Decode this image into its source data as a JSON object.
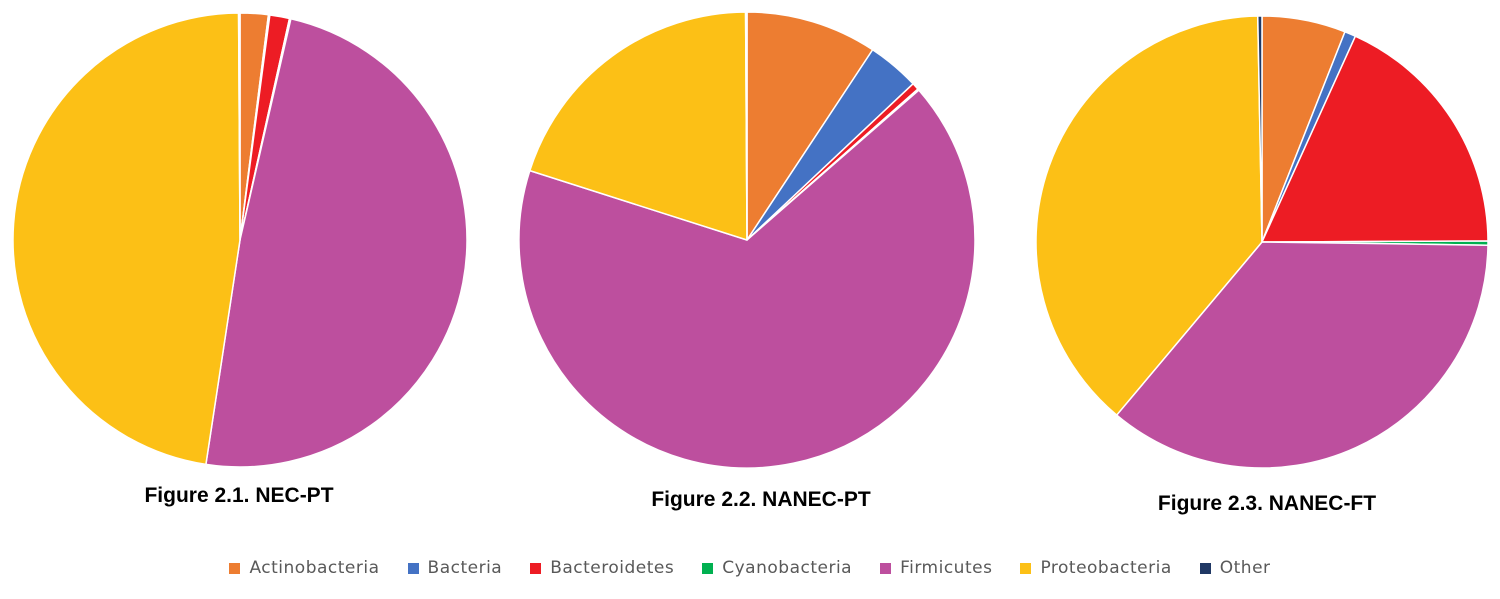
{
  "chart_data": [
    {
      "type": "pie",
      "title": "Figure 2.1. NEC-PT",
      "categories": [
        "Actinobacteria",
        "Bacteria",
        "Bacteroidetes",
        "Cyanobacteria",
        "Firmicutes",
        "Proteobacteria",
        "Other"
      ],
      "values": [
        2.0,
        0.1,
        1.4,
        0.1,
        48.8,
        47.5,
        0.1
      ]
    },
    {
      "type": "pie",
      "title": "Figure 2.2. NANEC-PT",
      "categories": [
        "Actinobacteria",
        "Bacteria",
        "Bacteroidetes",
        "Cyanobacteria",
        "Firmicutes",
        "Proteobacteria",
        "Other"
      ],
      "values": [
        9.3,
        3.7,
        0.5,
        0.1,
        66.4,
        20.0,
        0.1
      ]
    },
    {
      "type": "pie",
      "title": "Figure 2.3. NANEC-FT",
      "categories": [
        "Actinobacteria",
        "Bacteria",
        "Bacteroidetes",
        "Cyanobacteria",
        "Firmicutes",
        "Proteobacteria",
        "Other"
      ],
      "values": [
        6.0,
        0.8,
        18.2,
        0.3,
        36.0,
        38.7,
        0.3
      ]
    }
  ],
  "legend": [
    {
      "label": "Actinobacteria",
      "color": "#ED7D31"
    },
    {
      "label": "Bacteria",
      "color": "#4472C4"
    },
    {
      "label": "Bacteroidetes",
      "color": "#ED1C24"
    },
    {
      "label": "Cyanobacteria",
      "color": "#00B050"
    },
    {
      "label": "Firmicutes",
      "color": "#BD4F9E"
    },
    {
      "label": "Proteobacteria",
      "color": "#FCC016"
    },
    {
      "label": "Other",
      "color": "#203864"
    }
  ],
  "colors": {
    "Actinobacteria": "#ED7D31",
    "Bacteria": "#4472C4",
    "Bacteroidetes": "#ED1C24",
    "Cyanobacteria": "#00B050",
    "Firmicutes": "#BD4F9E",
    "Proteobacteria": "#FCC016",
    "Other": "#203864"
  }
}
